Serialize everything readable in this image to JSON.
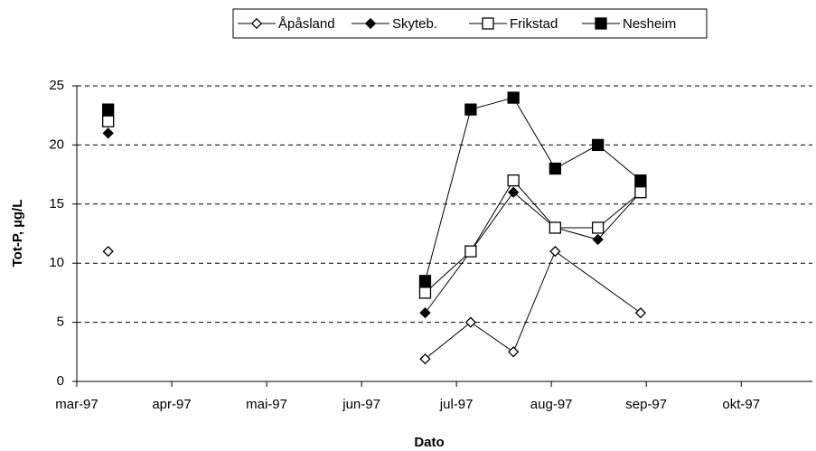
{
  "chart_data": {
    "type": "line",
    "xlabel": "Dato",
    "ylabel": "Tot-P, µg/L",
    "xlim": [
      0,
      7.75
    ],
    "xticks": [
      {
        "value": 0,
        "label": "mar-97"
      },
      {
        "value": 1,
        "label": "apr-97"
      },
      {
        "value": 2,
        "label": "mai-97"
      },
      {
        "value": 3,
        "label": "jun-97"
      },
      {
        "value": 4,
        "label": "jul-97"
      },
      {
        "value": 5,
        "label": "aug-97"
      },
      {
        "value": 6,
        "label": "sep-97"
      },
      {
        "value": 7,
        "label": "okt-97"
      }
    ],
    "ylim": [
      0,
      25
    ],
    "yticks": [
      0,
      5,
      10,
      15,
      20,
      25
    ],
    "grid": true,
    "series": [
      {
        "name": "Åpåsland",
        "color": "#000000",
        "marker": "diamond",
        "filled": false,
        "x": [
          0.33,
          3.67,
          4.15,
          4.6,
          5.04,
          5.94
        ],
        "values": [
          11,
          1.9,
          5,
          2.5,
          11,
          5.8
        ]
      },
      {
        "name": "Skyteb.",
        "color": "#000000",
        "marker": "diamond",
        "filled": true,
        "x": [
          0.33,
          3.67,
          4.15,
          4.6,
          5.04,
          5.49,
          5.94
        ],
        "values": [
          21,
          5.8,
          11,
          16,
          13,
          12,
          16
        ]
      },
      {
        "name": "Frikstad",
        "color": "#000000",
        "marker": "square",
        "filled": false,
        "x": [
          0.33,
          3.67,
          4.15,
          4.6,
          5.04,
          5.49,
          5.94
        ],
        "values": [
          22,
          7.5,
          11,
          17,
          13,
          13,
          16
        ]
      },
      {
        "name": "Nesheim",
        "color": "#000000",
        "marker": "square",
        "filled": true,
        "x": [
          0.33,
          3.67,
          4.15,
          4.6,
          5.04,
          5.49,
          5.94
        ],
        "values": [
          23,
          8.5,
          23,
          24,
          18,
          20,
          17
        ]
      }
    ]
  }
}
